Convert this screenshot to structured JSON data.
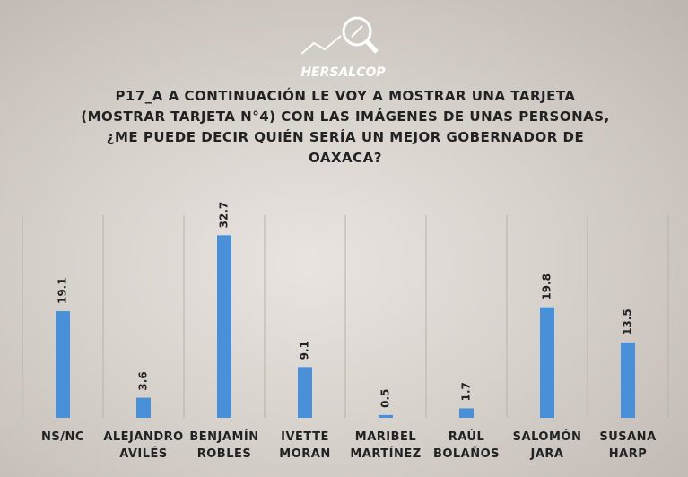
{
  "logo": {
    "text": "HERSALCOP"
  },
  "chart_data": {
    "type": "bar",
    "title": "P17_A A CONTINUACIÓN LE VOY A MOSTRAR UNA TARJETA (MOSTRAR TARJETA N°4) CON LAS IMÁGENES DE UNAS PERSONAS, ¿ME PUEDE DECIR QUIÉN SERÍA UN MEJOR GOBERNADOR DE OAXACA?",
    "categories": [
      "NS/NC",
      "ALEJANDRO AVILÉS",
      "BENJAMÍN ROBLES",
      "IVETTE MORAN",
      "MARIBEL MARTÍNEZ",
      "RAÚL BOLAÑOS",
      "SALOMÓN JARA",
      "SUSANA HARP"
    ],
    "values": [
      19.1,
      3.6,
      32.7,
      9.1,
      0.5,
      1.7,
      19.8,
      13.5
    ],
    "color": "#4a90d9",
    "ylim": [
      0,
      35
    ],
    "grid": true
  }
}
